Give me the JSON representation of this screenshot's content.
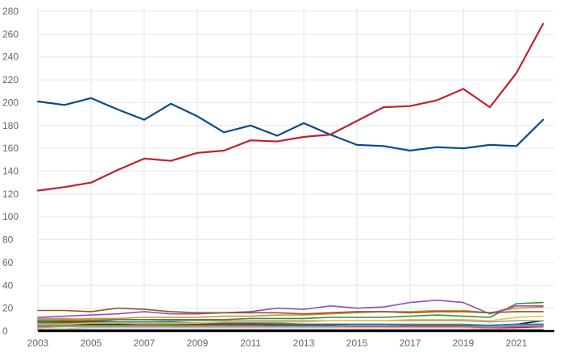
{
  "chart_data": {
    "type": "line",
    "title": "",
    "xlabel": "",
    "ylabel": "",
    "xlim": [
      2003,
      2022
    ],
    "ylim": [
      0,
      280
    ],
    "grid": true,
    "legend": "none",
    "x": [
      2003,
      2004,
      2005,
      2006,
      2007,
      2008,
      2009,
      2010,
      2011,
      2012,
      2013,
      2014,
      2015,
      2016,
      2017,
      2018,
      2019,
      2020,
      2021,
      2022
    ],
    "x_tick_labels": [
      "2003",
      "2005",
      "2007",
      "2009",
      "2011",
      "2013",
      "2015",
      "2017",
      "2019",
      "2021"
    ],
    "y_tick_labels": [
      "0",
      "20",
      "40",
      "60",
      "80",
      "100",
      "120",
      "140",
      "160",
      "180",
      "200",
      "220",
      "240",
      "260",
      "280"
    ],
    "series": [
      {
        "color": "#c0202e",
        "values": [
          123,
          126,
          130,
          141,
          151,
          149,
          156,
          158,
          167,
          166,
          170,
          172,
          184,
          196,
          197,
          202,
          212,
          196,
          226,
          269
        ]
      },
      {
        "color": "#0b4a8a",
        "values": [
          201,
          198,
          204,
          194,
          185,
          199,
          188,
          174,
          180,
          171,
          182,
          172,
          163,
          162,
          158,
          161,
          160,
          163,
          162,
          185
        ]
      },
      {
        "color": "#8a5a1e",
        "values": [
          18,
          18,
          17,
          20,
          19,
          17,
          16,
          16,
          16,
          16,
          15,
          16,
          17,
          17,
          16,
          17,
          17,
          16,
          17,
          17
        ]
      },
      {
        "color": "#8e4fc2",
        "values": [
          12,
          13,
          14,
          15,
          17,
          15,
          15,
          16,
          17,
          20,
          19,
          22,
          20,
          21,
          25,
          27,
          25,
          15,
          22,
          22
        ]
      },
      {
        "color": "#e08a2a",
        "values": [
          10,
          10,
          11,
          11,
          12,
          12,
          12,
          13,
          13,
          14,
          14,
          15,
          16,
          17,
          17,
          18,
          18,
          16,
          20,
          21
        ]
      },
      {
        "color": "#3d8b3d",
        "values": [
          9,
          9,
          9,
          10,
          10,
          10,
          10,
          10,
          11,
          11,
          11,
          12,
          12,
          12,
          13,
          14,
          13,
          12,
          24,
          25
        ]
      },
      {
        "color": "#e6c34a",
        "values": [
          6,
          6,
          7,
          7,
          7,
          7,
          7,
          8,
          8,
          8,
          8,
          9,
          9,
          9,
          10,
          10,
          10,
          9,
          12,
          13
        ]
      },
      {
        "color": "#2a6fb0",
        "values": [
          8,
          9,
          9,
          8,
          8,
          8,
          7,
          7,
          7,
          6,
          6,
          6,
          6,
          6,
          5,
          5,
          5,
          5,
          6,
          6
        ]
      },
      {
        "color": "#6b8e23",
        "values": [
          7,
          7,
          7,
          7,
          6,
          6,
          7,
          7,
          7,
          7,
          6,
          6,
          6,
          6,
          6,
          6,
          6,
          5,
          6,
          6
        ]
      },
      {
        "color": "#a0a0a0",
        "values": [
          11,
          11,
          10,
          10,
          10,
          9,
          9,
          9,
          9,
          9,
          9,
          9,
          9,
          9,
          9,
          9,
          9,
          8,
          9,
          9
        ]
      },
      {
        "color": "#5bb0d8",
        "values": [
          3,
          4,
          4,
          4,
          4,
          4,
          4,
          4,
          4,
          4,
          4,
          4,
          5,
          5,
          5,
          5,
          5,
          4,
          5,
          5
        ]
      },
      {
        "color": "#d94b8a",
        "values": [
          4,
          4,
          4,
          4,
          5,
          4,
          4,
          4,
          4,
          4,
          4,
          4,
          4,
          4,
          4,
          4,
          4,
          3,
          4,
          4
        ]
      },
      {
        "color": "#9b1b1b",
        "values": [
          8,
          8,
          8,
          7,
          7,
          6,
          6,
          6,
          6,
          5,
          5,
          5,
          5,
          4,
          4,
          4,
          4,
          3,
          3,
          4
        ]
      },
      {
        "color": "#8c7b3a",
        "values": [
          5,
          5,
          5,
          5,
          5,
          5,
          5,
          5,
          5,
          5,
          5,
          5,
          5,
          5,
          5,
          5,
          5,
          5,
          5,
          5
        ]
      },
      {
        "color": "#f0c05a",
        "values": [
          2,
          2,
          3,
          3,
          3,
          3,
          3,
          3,
          3,
          3,
          3,
          3,
          3,
          3,
          3,
          3,
          3,
          2,
          3,
          3
        ]
      },
      {
        "color": "#1a1a1a",
        "values": [
          6,
          6,
          6,
          6,
          6,
          6,
          5,
          5,
          5,
          5,
          5,
          5,
          5,
          5,
          5,
          5,
          5,
          5,
          6,
          9
        ]
      },
      {
        "color": "#2e2e7a",
        "values": [
          1,
          1,
          1,
          1,
          1,
          1,
          1,
          1,
          1,
          1,
          1,
          1,
          1,
          1,
          1,
          1,
          1,
          1,
          1,
          1
        ]
      }
    ]
  }
}
